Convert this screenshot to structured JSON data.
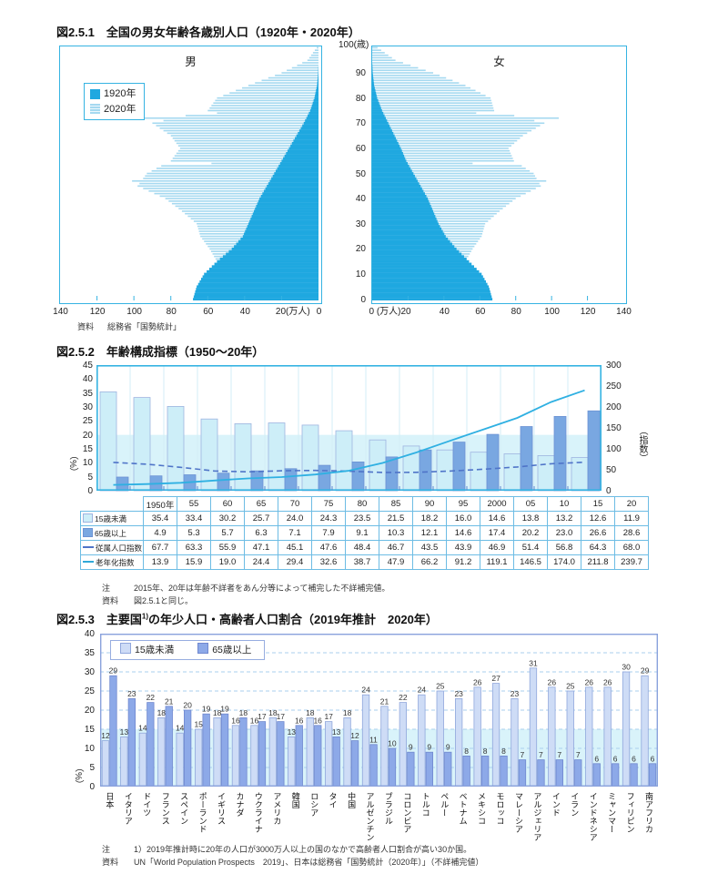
{
  "colors": {
    "cyan": "#1fa8e0",
    "cyan_light": "#a5d9f0",
    "frame_cyan": "#35b3e2",
    "band": "#d9f3fa",
    "slot_sep": "#d3ecf7",
    "bottom_tick": "#5f87cf",
    "fig2_bar_light": "#cdeef8",
    "fig2_bar_light_border": "#9fb4e0",
    "fig2_bar_dark": "#79a7e1",
    "fig2_bar_dark_border": "#6d93d4",
    "line_dashed": "#4f74c8",
    "line_solid": "#2fb0e2",
    "fig3_frame": "#8aa2dc",
    "fig3_grid": "#aacfee",
    "fig3_bar_light": "#cedcf6",
    "fig3_bar_light_border": "#90a7dc",
    "fig3_bar_dark": "#8da9e8",
    "fig3_bar_dark_border": "#7088cf"
  },
  "figure1": {
    "title": "図2.5.1　全国の男女年齢各歳別人口（1920年・2020年）",
    "male_title": "男",
    "female_title": "女",
    "legend": [
      {
        "label": "1920年"
      },
      {
        "label": "2020年"
      }
    ],
    "age_unit_label": "100(歳)",
    "age_ticks": [
      90,
      80,
      70,
      60,
      50,
      40,
      30,
      20,
      10,
      0
    ],
    "male_axis": [
      {
        "value": 140,
        "label": "140"
      },
      {
        "value": 120,
        "label": "120"
      },
      {
        "value": 100,
        "label": "100"
      },
      {
        "value": 80,
        "label": "80"
      },
      {
        "value": 60,
        "label": "60"
      },
      {
        "value": 40,
        "label": "40"
      },
      {
        "value": 20,
        "label": "20(万人)"
      },
      {
        "value": 0,
        "label": "0"
      }
    ],
    "female_axis": [
      {
        "value": 0,
        "label": "0 (万人)20"
      },
      {
        "value": 40,
        "label": "40"
      },
      {
        "value": 60,
        "label": "60"
      },
      {
        "value": 80,
        "label": "80"
      },
      {
        "value": 100,
        "label": "100"
      },
      {
        "value": 120,
        "label": "120"
      },
      {
        "value": 140,
        "label": "140"
      }
    ],
    "source_label": "資料",
    "source": "総務省「国勢統計」"
  },
  "figure2": {
    "title": "図2.5.2　年齢構成指標（1950〜20年）",
    "left_axis_ticks": [
      45,
      40,
      35,
      30,
      25,
      20,
      15,
      10,
      5,
      0
    ],
    "right_axis_ticks": [
      300,
      250,
      200,
      150,
      100,
      50,
      0
    ],
    "left_axis_unit": "（%）",
    "right_axis_unit": "（指数）",
    "note_label": "注",
    "note": "2015年、20年は年齢不詳者をあん分等によって補完した不詳補完値。",
    "source_label": "資料",
    "source": "図2.5.1と同じ。"
  },
  "figure3": {
    "title_prefix": "図2.5.3　主要国",
    "title_sup": "1)",
    "title_suffix": "の年少人口・高齢者人口割合（2019年推計　2020年）",
    "legend": [
      {
        "label": "15歳未満"
      },
      {
        "label": "65歳以上"
      }
    ],
    "axis_ticks": [
      40,
      35,
      30,
      25,
      20,
      15,
      10,
      5,
      0
    ],
    "axis_unit": "（%）",
    "note_label": "注",
    "note": "1）2019年推計時に20年の人口が3000万人以上の国のなかで高齢者人口割合が高い30か国。",
    "source_label": "資料",
    "source": "UN「World Population Prospects　2019」、日本は総務省「国勢統計（2020年）」（不詳補完値）"
  },
  "chart_data": [
    {
      "id": "fig251",
      "type": "bar",
      "subtype": "population-pyramid",
      "title": "全国の男女年齢各歳別人口（1920年・2020年）",
      "unit": "万人",
      "xlim": [
        0,
        140
      ],
      "age_range": [
        0,
        100
      ],
      "anchor_step": 5,
      "anchor_ages": [
        0,
        5,
        10,
        15,
        20,
        25,
        30,
        35,
        40,
        45,
        50,
        55,
        60,
        65,
        70,
        75,
        80,
        85,
        90,
        95,
        100
      ],
      "series": [
        {
          "name": "男 1920年",
          "anchor_values": [
            68,
            66,
            62,
            55,
            47,
            41,
            38,
            35,
            32,
            28,
            24,
            20,
            16,
            12,
            8,
            4.5,
            2.2,
            0.8,
            0.2,
            0,
            0
          ]
        },
        {
          "name": "男 2020年",
          "anchor_values": [
            43,
            50,
            53,
            55,
            59,
            64,
            66,
            74,
            83,
            98,
            93,
            80,
            75,
            80,
            90,
            60,
            55,
            38,
            20,
            6,
            1
          ],
          "single_year_overrides": {
            "47": 101,
            "54": 58,
            "72": 97,
            "74": 55
          }
        },
        {
          "name": "女 1920年",
          "anchor_values": [
            67,
            65,
            61,
            54,
            47,
            41,
            37,
            34,
            31,
            27,
            23,
            19,
            16,
            12.5,
            9,
            5.5,
            2.8,
            1.1,
            0.3,
            0,
            0
          ]
        },
        {
          "name": "女 2020年",
          "anchor_values": [
            41,
            48,
            50,
            52,
            56,
            61,
            63,
            71,
            80,
            94,
            90,
            79,
            76,
            84,
            96,
            68,
            66,
            52,
            34,
            13,
            3
          ],
          "single_year_overrides": {
            "47": 97,
            "54": 56,
            "72": 104,
            "74": 58
          }
        }
      ]
    },
    {
      "id": "fig252",
      "type": "bar",
      "subtype": "bar+line",
      "title": "年齢構成指標（1950〜20年）",
      "categories": [
        "1950年",
        "55",
        "60",
        "65",
        "70",
        "75",
        "80",
        "85",
        "90",
        "95",
        "2000",
        "05",
        "10",
        "15",
        "20"
      ],
      "ylim_left": [
        0,
        45
      ],
      "ylim_right": [
        0,
        300
      ],
      "background_band_pct": 20,
      "series": [
        {
          "name": "15歳未満",
          "style": "bar-light",
          "axis": "left",
          "values": [
            35.4,
            33.4,
            30.2,
            25.7,
            24.0,
            24.3,
            23.5,
            21.5,
            18.2,
            16.0,
            14.6,
            13.8,
            13.2,
            12.6,
            11.9
          ]
        },
        {
          "name": "65歳以上",
          "style": "bar-dark",
          "axis": "left",
          "values": [
            4.9,
            5.3,
            5.7,
            6.3,
            7.1,
            7.9,
            9.1,
            10.3,
            12.1,
            14.6,
            17.4,
            20.2,
            23.0,
            26.6,
            28.6
          ]
        },
        {
          "name": "従属人口指数",
          "style": "line-dashed",
          "axis": "right",
          "values": [
            67.7,
            63.3,
            55.9,
            47.1,
            45.1,
            47.6,
            48.4,
            46.7,
            43.5,
            43.9,
            46.9,
            51.4,
            56.8,
            64.3,
            68.0
          ]
        },
        {
          "name": "老年化指数",
          "style": "line-solid",
          "axis": "right",
          "values": [
            13.9,
            15.9,
            19.0,
            24.4,
            29.4,
            32.6,
            38.7,
            47.9,
            66.2,
            91.2,
            119.1,
            146.5,
            174.0,
            211.8,
            239.7
          ]
        }
      ]
    },
    {
      "id": "fig253",
      "type": "bar",
      "title": "主要国の年少人口・高齢者人口割合（2019年推計 2020年）",
      "ylim": [
        0,
        40
      ],
      "background_band_pct": 15,
      "categories": [
        "日本",
        "イタリア",
        "ドイツ",
        "フランス",
        "スペイン",
        "ポーランド",
        "イギリス",
        "カナダ",
        "ウクライナ",
        "アメリカ",
        "韓国",
        "ロシア",
        "タイ",
        "中国",
        "アルゼンチン",
        "ブラジル",
        "コロンビア",
        "トルコ",
        "ペルー",
        "ベトナム",
        "メキシコ",
        "モロッコ",
        "マレーシア",
        "アルジェリア",
        "インド",
        "イラン",
        "インドネシア",
        "ミャンマー",
        "フィリピン",
        "南アフリカ"
      ],
      "series": [
        {
          "name": "15歳未満",
          "values": [
            12,
            13,
            14,
            18,
            14,
            15,
            18,
            16,
            16,
            18,
            13,
            18,
            17,
            18,
            24,
            21,
            22,
            24,
            25,
            23,
            26,
            27,
            23,
            31,
            26,
            25,
            26,
            26,
            30,
            29
          ]
        },
        {
          "name": "65歳以上",
          "values": [
            29,
            23,
            22,
            21,
            20,
            19,
            19,
            18,
            17,
            17,
            16,
            16,
            13,
            12,
            11,
            10,
            9,
            9,
            9,
            8,
            8,
            8,
            7,
            7,
            7,
            7,
            6,
            6,
            6,
            6
          ]
        }
      ]
    }
  ]
}
